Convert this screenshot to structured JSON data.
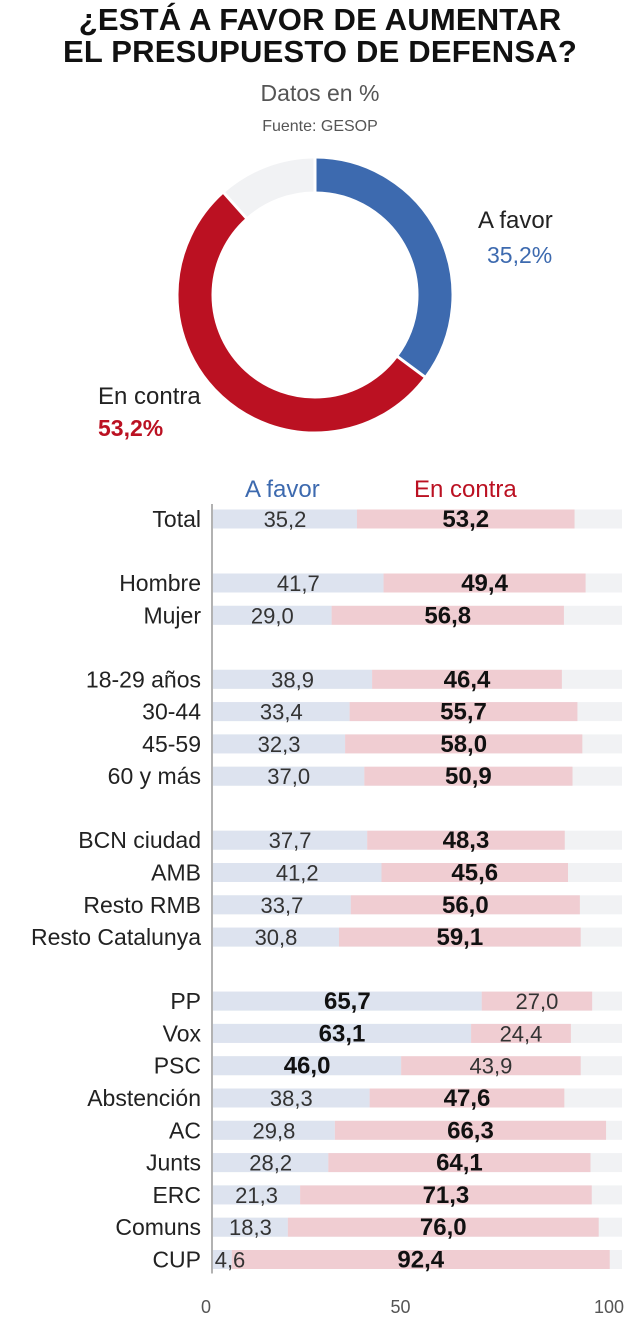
{
  "title_line1": "¿ESTÁ A FAVOR DE AUMENTAR",
  "title_line2": "EL PRESUPUESTO DE DEFENSA?",
  "subtitle": "Datos en %",
  "source": "Fuente: GESOP",
  "colors": {
    "favor": "#3d6aaf",
    "contra": "#bb1122",
    "favor_light": "#dde3ef",
    "contra_light": "#f0cdd2",
    "rest": "#f1f2f4"
  },
  "donut": {
    "favor_label": "A favor",
    "favor_pct": "35,2%",
    "contra_label": "En contra",
    "contra_pct": "53,2%"
  },
  "chart_data": [
    {
      "type": "pie",
      "title": "¿ESTÁ A FAVOR DE AUMENTAR EL PRESUPUESTO DE DEFENSA?",
      "categories": [
        "A favor",
        "En contra",
        "Resto"
      ],
      "values": [
        35.2,
        53.2,
        11.6
      ]
    },
    {
      "type": "bar",
      "orientation": "horizontal",
      "stacked": true,
      "legend": [
        "A favor",
        "En contra"
      ],
      "xlim": [
        0,
        100
      ],
      "ticks": [
        "0",
        "50",
        "100"
      ],
      "groups": [
        [
          {
            "label": "Total",
            "favor": 35.2,
            "contra": 53.2,
            "favor_text": "35,2",
            "contra_text": "53,2"
          }
        ],
        [
          {
            "label": "Hombre",
            "favor": 41.7,
            "contra": 49.4,
            "favor_text": "41,7",
            "contra_text": "49,4"
          },
          {
            "label": "Mujer",
            "favor": 29.0,
            "contra": 56.8,
            "favor_text": "29,0",
            "contra_text": "56,8"
          }
        ],
        [
          {
            "label": "18-29 años",
            "favor": 38.9,
            "contra": 46.4,
            "favor_text": "38,9",
            "contra_text": "46,4"
          },
          {
            "label": "30-44",
            "favor": 33.4,
            "contra": 55.7,
            "favor_text": "33,4",
            "contra_text": "55,7"
          },
          {
            "label": "45-59",
            "favor": 32.3,
            "contra": 58.0,
            "favor_text": "32,3",
            "contra_text": "58,0"
          },
          {
            "label": "60 y más",
            "favor": 37.0,
            "contra": 50.9,
            "favor_text": "37,0",
            "contra_text": "50,9"
          }
        ],
        [
          {
            "label": "BCN ciudad",
            "favor": 37.7,
            "contra": 48.3,
            "favor_text": "37,7",
            "contra_text": "48,3"
          },
          {
            "label": "AMB",
            "favor": 41.2,
            "contra": 45.6,
            "favor_text": "41,2",
            "contra_text": "45,6"
          },
          {
            "label": "Resto RMB",
            "favor": 33.7,
            "contra": 56.0,
            "favor_text": "33,7",
            "contra_text": "56,0"
          },
          {
            "label": "Resto Catalunya",
            "favor": 30.8,
            "contra": 59.1,
            "favor_text": "30,8",
            "contra_text": "59,1"
          }
        ],
        [
          {
            "label": "PP",
            "favor": 65.7,
            "contra": 27.0,
            "favor_text": "65,7",
            "contra_text": "27,0"
          },
          {
            "label": "Vox",
            "favor": 63.1,
            "contra": 24.4,
            "favor_text": "63,1",
            "contra_text": "24,4"
          },
          {
            "label": "PSC",
            "favor": 46.0,
            "contra": 43.9,
            "favor_text": "46,0",
            "contra_text": "43,9"
          },
          {
            "label": "Abstención",
            "favor": 38.3,
            "contra": 47.6,
            "favor_text": "38,3",
            "contra_text": "47,6"
          },
          {
            "label": "AC",
            "favor": 29.8,
            "contra": 66.3,
            "favor_text": "29,8",
            "contra_text": "66,3"
          },
          {
            "label": "Junts",
            "favor": 28.2,
            "contra": 64.1,
            "favor_text": "28,2",
            "contra_text": "64,1"
          },
          {
            "label": "ERC",
            "favor": 21.3,
            "contra": 71.3,
            "favor_text": "21,3",
            "contra_text": "71,3"
          },
          {
            "label": "Comuns",
            "favor": 18.3,
            "contra": 76.0,
            "favor_text": "18,3",
            "contra_text": "76,0"
          },
          {
            "label": "CUP",
            "favor": 4.6,
            "contra": 92.4,
            "favor_text": "4,6",
            "contra_text": "92,4"
          }
        ]
      ]
    }
  ]
}
